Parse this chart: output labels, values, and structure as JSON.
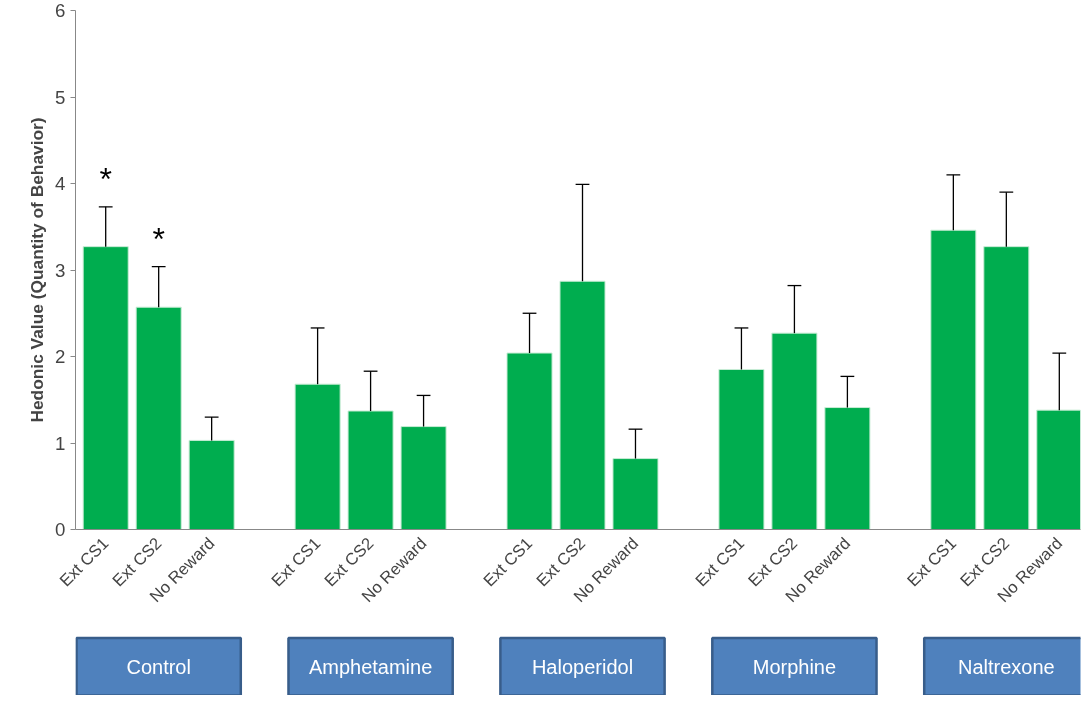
{
  "chart_data": {
    "type": "bar",
    "ylabel": "Hedonic Value (Quantity of Behavior)",
    "categories": [
      "Ext CS1",
      "Ext CS2",
      "No Reward",
      null,
      "Ext CS1",
      "Ext CS2",
      "No Reward",
      null,
      "Ext CS1",
      "Ext CS2",
      "No Reward",
      null,
      "Ext CS1",
      "Ext CS2",
      "No Reward",
      null,
      "Ext CS1",
      "Ext CS2",
      "No Reward"
    ],
    "values": [
      3.27,
      2.57,
      1.03,
      null,
      1.68,
      1.37,
      1.19,
      null,
      2.04,
      2.87,
      0.82,
      null,
      1.85,
      2.27,
      1.41,
      null,
      3.46,
      3.27,
      1.38
    ],
    "errors": [
      [
        3.27,
        3.73
      ],
      [
        2.57,
        3.04
      ],
      [
        1.03,
        1.3
      ],
      null,
      [
        1.68,
        2.33
      ],
      [
        1.37,
        1.83
      ],
      [
        1.19,
        1.55
      ],
      null,
      [
        2.04,
        2.5
      ],
      [
        2.87,
        3.99
      ],
      [
        0.82,
        1.16
      ],
      null,
      [
        1.85,
        2.33
      ],
      [
        2.27,
        2.82
      ],
      [
        1.41,
        1.77
      ],
      null,
      [
        3.46,
        4.1
      ],
      [
        3.27,
        3.9
      ],
      [
        1.38,
        2.04
      ]
    ],
    "color": "#00ad4f",
    "ylim": [
      0,
      6
    ],
    "yticks": [
      0,
      1,
      2,
      3,
      4,
      5,
      6
    ],
    "grid": false,
    "annotations": [
      "*",
      "*",
      "Control",
      "Amphetamine",
      "Haloperidol",
      "Morphine",
      "Naltrexone"
    ]
  }
}
